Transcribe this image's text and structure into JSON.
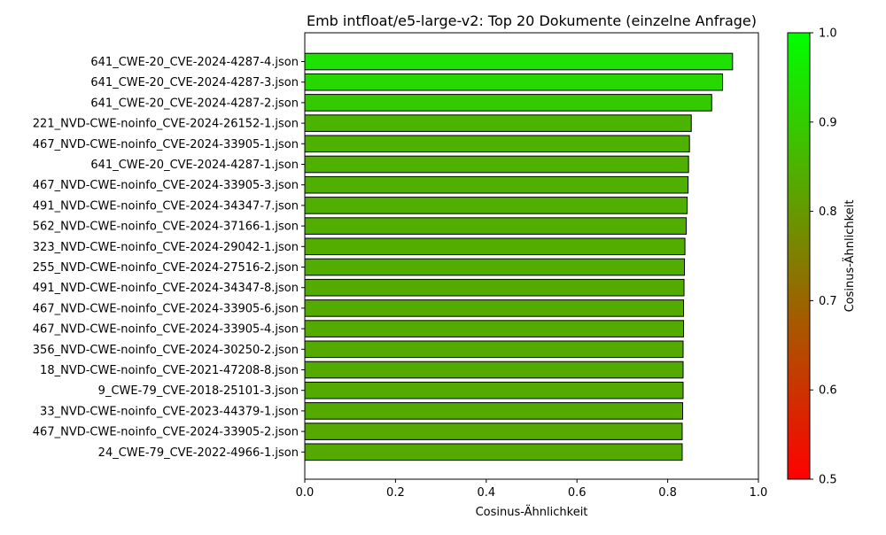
{
  "chart_data": {
    "type": "bar",
    "orientation": "horizontal",
    "title": "Emb intfloat/e5-large-v2: Top 20 Dokumente (einzelne Anfrage)",
    "xlabel": "Cosinus-Ähnlichkeit",
    "ylabel": "",
    "xlim": [
      0.0,
      1.0
    ],
    "xticks": [
      "0.0",
      "0.2",
      "0.4",
      "0.6",
      "0.8",
      "1.0"
    ],
    "grid": false,
    "categories": [
      "641_CWE-20_CVE-2024-4287-4.json",
      "641_CWE-20_CVE-2024-4287-3.json",
      "641_CWE-20_CVE-2024-4287-2.json",
      "221_NVD-CWE-noinfo_CVE-2024-26152-1.json",
      "467_NVD-CWE-noinfo_CVE-2024-33905-1.json",
      "641_CWE-20_CVE-2024-4287-1.json",
      "467_NVD-CWE-noinfo_CVE-2024-33905-3.json",
      "491_NVD-CWE-noinfo_CVE-2024-34347-7.json",
      "562_NVD-CWE-noinfo_CVE-2024-37166-1.json",
      "323_NVD-CWE-noinfo_CVE-2024-29042-1.json",
      "255_NVD-CWE-noinfo_CVE-2024-27516-2.json",
      "491_NVD-CWE-noinfo_CVE-2024-34347-8.json",
      "467_NVD-CWE-noinfo_CVE-2024-33905-6.json",
      "467_NVD-CWE-noinfo_CVE-2024-33905-4.json",
      "356_NVD-CWE-noinfo_CVE-2024-30250-2.json",
      "18_NVD-CWE-noinfo_CVE-2021-47208-8.json",
      "9_CWE-79_CVE-2018-25101-3.json",
      "33_NVD-CWE-noinfo_CVE-2023-44379-1.json",
      "467_NVD-CWE-noinfo_CVE-2024-33905-2.json",
      "24_CWE-79_CVE-2022-4966-1.json"
    ],
    "values": [
      0.943,
      0.921,
      0.897,
      0.852,
      0.848,
      0.846,
      0.845,
      0.843,
      0.841,
      0.838,
      0.837,
      0.836,
      0.835,
      0.835,
      0.834,
      0.834,
      0.834,
      0.833,
      0.832,
      0.832
    ],
    "colorbar": {
      "label": "Cosinus-Ähnlichkeit",
      "range": [
        0.5,
        1.0
      ],
      "ticks": [
        "0.5",
        "0.6",
        "0.7",
        "0.8",
        "0.9",
        "1.0"
      ],
      "color_low": "#ff0000",
      "color_high": "#00ff00"
    },
    "bar_edge_color": "#000000"
  }
}
